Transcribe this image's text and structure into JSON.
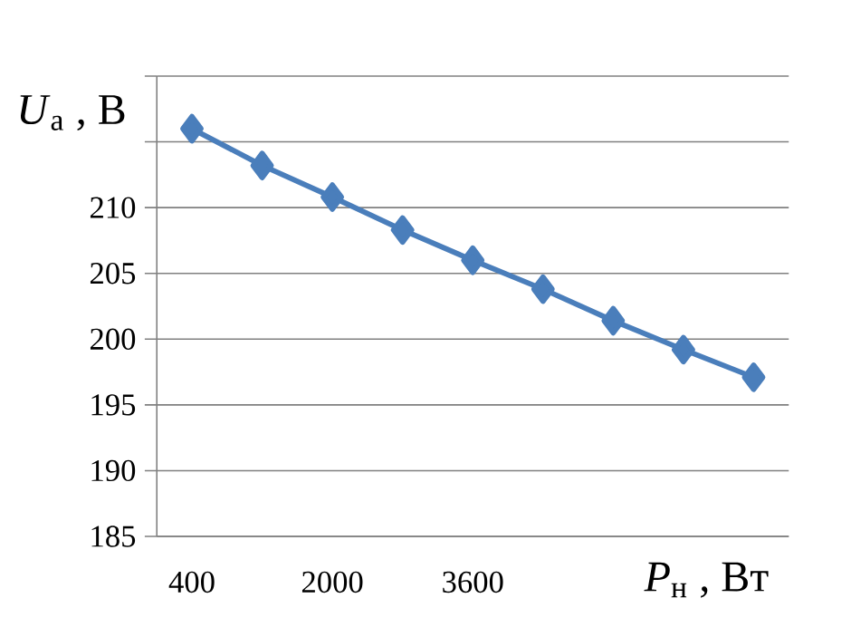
{
  "chart_data": {
    "type": "line",
    "xlabel": "*P*$_{н}$ , Вт",
    "ylabel": "*U*$_{a}$ , В",
    "categories": [
      "400",
      null,
      "2000",
      null,
      "3600",
      null,
      null,
      null,
      null
    ],
    "series": [
      {
        "color": "#4a7ebb",
        "values": [
          216.0,
          213.2,
          210.8,
          208.3,
          206.0,
          203.8,
          201.4,
          199.2,
          197.1
        ]
      }
    ],
    "ylim": [
      185,
      220
    ],
    "yticks": [
      185,
      190,
      195,
      200,
      205,
      210,
      {
        "value": 215,
        "label": null
      },
      {
        "value": 220,
        "label": null
      }
    ],
    "grid": "y",
    "marker": "diamond",
    "line_style": "solid"
  }
}
